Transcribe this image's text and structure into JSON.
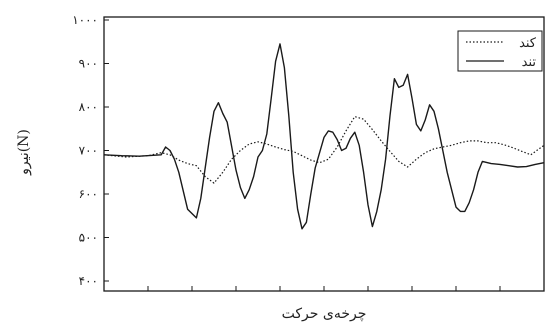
{
  "chart_data": {
    "type": "line",
    "xlabel": "چرخه‌ی حرکت",
    "ylabel": "نیرو(N)",
    "ylim": [
      400,
      1000
    ],
    "xlim": [
      0,
      100
    ],
    "yticks": [
      400,
      500,
      600,
      700,
      800,
      900,
      1000
    ],
    "ytick_labels": [
      "۴۰۰",
      "۵۰۰",
      "۶۰۰",
      "۷۰۰",
      "۸۰۰",
      "۹۰۰",
      "۱۰۰۰"
    ],
    "xticks": [
      0,
      10,
      20,
      30,
      40,
      50,
      60,
      70,
      80,
      90,
      100
    ],
    "grid": false,
    "legend_position": "top-right",
    "series": [
      {
        "name": "کند",
        "style": "dotted",
        "x": [
          0,
          5,
          10,
          13,
          15,
          17,
          19,
          21,
          23,
          25,
          27,
          29,
          31,
          33,
          35,
          37,
          39,
          41,
          43,
          45,
          47,
          49,
          51,
          53,
          55,
          57,
          59,
          61,
          63,
          65,
          67,
          69,
          71,
          73,
          75,
          77,
          79,
          81,
          83,
          85,
          87,
          89,
          91,
          93,
          95,
          97,
          100
        ],
        "values": [
          690,
          685,
          688,
          695,
          690,
          678,
          670,
          665,
          640,
          625,
          650,
          680,
          700,
          715,
          720,
          715,
          708,
          702,
          698,
          688,
          678,
          672,
          680,
          708,
          745,
          778,
          772,
          748,
          722,
          698,
          675,
          662,
          680,
          695,
          704,
          708,
          712,
          718,
          722,
          722,
          718,
          718,
          713,
          706,
          698,
          690,
          712
        ]
      },
      {
        "name": "تند",
        "style": "solid",
        "x": [
          0,
          4,
          8,
          13,
          14,
          15,
          16,
          17,
          19,
          21,
          22,
          23,
          24,
          25,
          26,
          27,
          28,
          29,
          30,
          31,
          32,
          33,
          34,
          35,
          36,
          37,
          38,
          39,
          40,
          41,
          42,
          43,
          44,
          45,
          46,
          47,
          48,
          49,
          50,
          51,
          52,
          53,
          54,
          55,
          56,
          57,
          58,
          59,
          60,
          61,
          62,
          63,
          64,
          65,
          66,
          67,
          68,
          69,
          70,
          71,
          72,
          73,
          74,
          75,
          76,
          77,
          78,
          79,
          80,
          81,
          82,
          83,
          84,
          85,
          86,
          88,
          90,
          92,
          94,
          96,
          98,
          100
        ],
        "values": [
          690,
          688,
          687,
          690,
          708,
          700,
          680,
          650,
          565,
          545,
          590,
          660,
          730,
          790,
          810,
          785,
          765,
          710,
          655,
          615,
          590,
          610,
          640,
          685,
          700,
          738,
          820,
          905,
          945,
          890,
          780,
          650,
          565,
          520,
          535,
          600,
          660,
          695,
          730,
          745,
          742,
          725,
          700,
          705,
          728,
          742,
          712,
          650,
          575,
          525,
          560,
          610,
          680,
          780,
          865,
          845,
          850,
          875,
          820,
          760,
          745,
          770,
          805,
          790,
          750,
          700,
          650,
          610,
          570,
          560,
          560,
          580,
          610,
          650,
          675,
          670,
          668,
          665,
          662,
          663,
          668,
          672
        ]
      }
    ]
  }
}
